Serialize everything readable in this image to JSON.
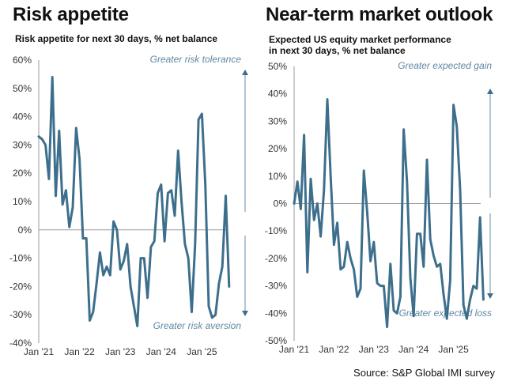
{
  "colors": {
    "line": "#3d6f8c",
    "axis": "#9a9a9a",
    "annotation": "#5f88a4",
    "arrow": "#7f9fb6"
  },
  "source": "Source: S&P Global IMI survey",
  "chart_data": [
    {
      "type": "line",
      "title": "Risk appetite",
      "subtitle": "Risk appetite for next 30 days, % net balance",
      "xlabel": "",
      "ylabel": "",
      "ylim": [
        -40,
        60
      ],
      "yticks": [
        60,
        50,
        40,
        30,
        20,
        10,
        0,
        -10,
        -20,
        -30,
        -40
      ],
      "ytick_labels": [
        "60%",
        "50%",
        "40%",
        "30%",
        "20%",
        "10%",
        "0%",
        "-10%",
        "-20%",
        "-30%",
        "-40%"
      ],
      "xticks": [
        0,
        12,
        24,
        36,
        48
      ],
      "xtick_labels": [
        "Jan '21",
        "Jan '22",
        "Jan '23",
        "Jan '24",
        "Jan '25"
      ],
      "x_months_span": 57,
      "annotations": {
        "top": "Greater risk tolerance",
        "bottom": "Greater risk aversion"
      },
      "series": [
        {
          "name": "Risk appetite",
          "start": "Jan 2021",
          "frequency": "monthly",
          "values": [
            33,
            32,
            30,
            18,
            54,
            12,
            35,
            9,
            14,
            1,
            8,
            36,
            25,
            -3,
            -3,
            -32,
            -29,
            -19,
            -8,
            -16,
            -13,
            -16,
            3,
            0,
            -14,
            -11,
            -5,
            -20,
            -27,
            -34,
            -10,
            -10,
            -24,
            -6,
            -4,
            13,
            16,
            -4,
            13,
            14,
            5,
            28,
            10,
            -5,
            -10,
            -29,
            -5,
            39,
            41,
            16,
            -27,
            -31,
            -30,
            -19,
            -13,
            12,
            -20
          ]
        }
      ]
    },
    {
      "type": "line",
      "title": "Near-term market outlook",
      "subtitle": "Expected US equity market performance in next 30 days, % net balance",
      "subtitle_lines": [
        "Expected US equity market performance",
        "in next 30 days, % net balance"
      ],
      "xlabel": "",
      "ylabel": "",
      "ylim": [
        -50,
        50
      ],
      "yticks": [
        50,
        40,
        30,
        20,
        10,
        0,
        -10,
        -20,
        -30,
        -40,
        -50
      ],
      "ytick_labels": [
        "50%",
        "40%",
        "30%",
        "20%",
        "10%",
        "0%",
        "-10%",
        "-20%",
        "-30%",
        "-40%",
        "-50%"
      ],
      "xticks": [
        0,
        12,
        24,
        36,
        48
      ],
      "xtick_labels": [
        "Jan '21",
        "Jan '22",
        "Jan '23",
        "Jan '24",
        "Jan '25"
      ],
      "x_months_span": 58,
      "annotations": {
        "top": "Greater expected gain",
        "bottom": "Greater  expected loss"
      },
      "series": [
        {
          "name": "Expected US equity market performance",
          "start": "Jan 2021",
          "frequency": "monthly",
          "values": [
            0,
            8,
            -2,
            25,
            -25,
            9,
            -6,
            0,
            -12,
            5,
            38,
            10,
            -15,
            -7,
            -24,
            -23,
            -14,
            -20,
            -24,
            -34,
            -31,
            12,
            -3,
            -21,
            -14,
            -29,
            -30,
            -30,
            -45,
            -22,
            -39,
            -40,
            -34,
            27,
            8,
            -27,
            -41,
            -11,
            -11,
            -23,
            16,
            -13,
            -19,
            -23,
            -22,
            -33,
            -42,
            -28,
            36,
            28,
            5,
            -37,
            -42,
            -35,
            -30,
            -31,
            -5,
            -35
          ]
        }
      ]
    }
  ]
}
